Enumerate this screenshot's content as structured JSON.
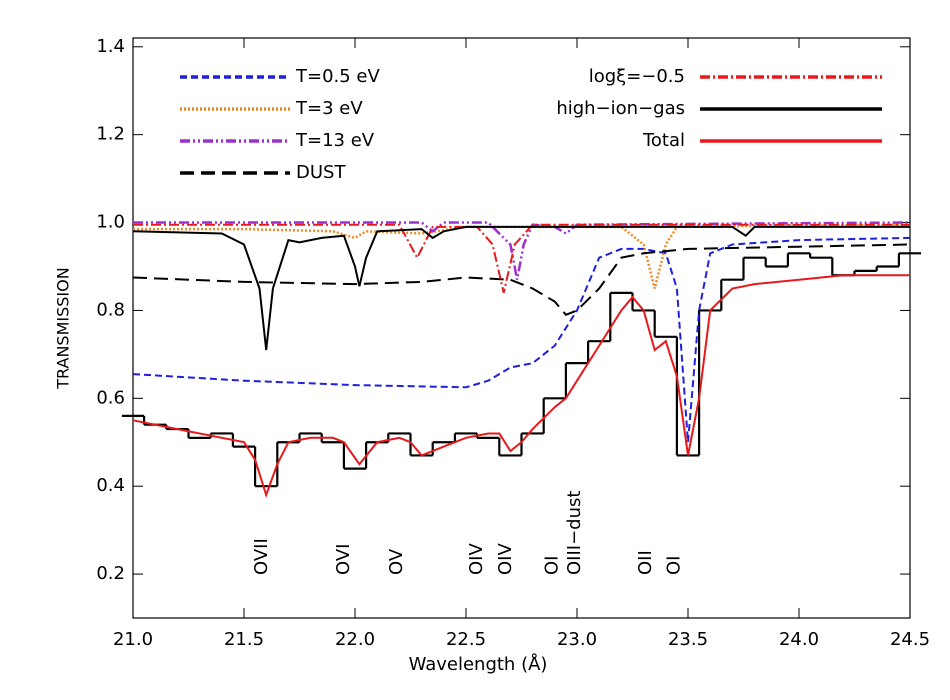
{
  "chart_data": {
    "type": "line",
    "xlabel": "Wavelength (Å)",
    "ylabel": "TRANSMISSION",
    "xlim": [
      21.0,
      24.5
    ],
    "ylim": [
      0.1,
      1.42
    ],
    "xticks": [
      {
        "value": 21,
        "label": "21.0"
      },
      {
        "value": 21.5,
        "label": "21.5"
      },
      {
        "value": 22,
        "label": "22.0"
      },
      {
        "value": 22.5,
        "label": "22.5"
      },
      {
        "value": 23,
        "label": "23.0"
      },
      {
        "value": 23.5,
        "label": "23.5"
      },
      {
        "value": 24,
        "label": "24.0"
      },
      {
        "value": 24.5,
        "label": "24.5"
      }
    ],
    "yticks": [
      0.2,
      0.4,
      0.6,
      0.8,
      {
        "value": 1,
        "label": "1.0"
      },
      1.2,
      1.4
    ],
    "grid": false,
    "observed": {
      "color": "#000000",
      "x": [
        21.0,
        21.1,
        21.2,
        21.3,
        21.4,
        21.5,
        21.6,
        21.7,
        21.8,
        21.9,
        22.0,
        22.1,
        22.2,
        22.3,
        22.4,
        22.5,
        22.6,
        22.7,
        22.8,
        22.9,
        23.0,
        23.1,
        23.2,
        23.3,
        23.4,
        23.5,
        23.6,
        23.7,
        23.8,
        23.9,
        24.0,
        24.1,
        24.2,
        24.3,
        24.4,
        24.5
      ],
      "values": [
        0.56,
        0.54,
        0.53,
        0.51,
        0.52,
        0.49,
        0.4,
        0.5,
        0.52,
        0.5,
        0.44,
        0.5,
        0.52,
        0.47,
        0.5,
        0.52,
        0.51,
        0.47,
        0.52,
        0.6,
        0.68,
        0.73,
        0.84,
        0.8,
        0.74,
        0.47,
        0.8,
        0.87,
        0.92,
        0.9,
        0.93,
        0.92,
        0.88,
        0.89,
        0.9,
        0.93
      ]
    },
    "series": [
      {
        "name": "T=0.5 eV",
        "color": "#1f1fe0",
        "dash": "dashed",
        "x": [
          21.0,
          21.5,
          22.0,
          22.5,
          22.6,
          22.7,
          22.8,
          22.9,
          23.0,
          23.1,
          23.2,
          23.3,
          23.4,
          23.45,
          23.5,
          23.55,
          23.6,
          23.7,
          24.0,
          24.5
        ],
        "values": [
          0.655,
          0.64,
          0.63,
          0.625,
          0.64,
          0.67,
          0.68,
          0.72,
          0.8,
          0.92,
          0.94,
          0.94,
          0.93,
          0.85,
          0.5,
          0.8,
          0.93,
          0.95,
          0.96,
          0.965
        ]
      },
      {
        "name": "T=3 eV",
        "color": "#f08a24",
        "dash": "dotted",
        "x": [
          21.0,
          21.5,
          21.9,
          22.0,
          22.05,
          22.3,
          22.5,
          23.0,
          23.2,
          23.3,
          23.35,
          23.4,
          23.45,
          24.5
        ],
        "values": [
          0.985,
          0.985,
          0.98,
          0.965,
          0.98,
          0.975,
          0.99,
          0.99,
          0.99,
          0.95,
          0.85,
          0.95,
          0.99,
          0.995
        ]
      },
      {
        "name": "T=13 eV",
        "color": "#9b30d0",
        "dash": "dash-dot-dot",
        "x": [
          21.0,
          22.3,
          22.35,
          22.4,
          22.6,
          22.7,
          22.73,
          22.76,
          22.8,
          22.9,
          22.95,
          23.0,
          24.5
        ],
        "values": [
          1.0,
          1.0,
          0.98,
          1.0,
          1.0,
          0.95,
          0.87,
          0.95,
          0.995,
          0.99,
          0.975,
          0.995,
          1.0
        ]
      },
      {
        "name": "DUST",
        "color": "#000000",
        "dash": "long-dash",
        "x": [
          21.0,
          21.5,
          22.0,
          22.3,
          22.5,
          22.7,
          22.8,
          22.9,
          22.95,
          23.0,
          23.1,
          23.2,
          23.3,
          23.5,
          24.0,
          24.5
        ],
        "values": [
          0.875,
          0.865,
          0.86,
          0.865,
          0.875,
          0.87,
          0.85,
          0.82,
          0.79,
          0.8,
          0.85,
          0.92,
          0.93,
          0.94,
          0.945,
          0.95
        ]
      },
      {
        "name": "logξ=−0.5",
        "color": "#e8181b",
        "dash": "dash-dot",
        "x": [
          21.0,
          22.2,
          22.28,
          22.35,
          22.55,
          22.62,
          22.67,
          22.72,
          22.8,
          24.5
        ],
        "values": [
          0.995,
          0.995,
          0.92,
          0.99,
          0.99,
          0.95,
          0.84,
          0.95,
          0.995,
          0.995
        ]
      },
      {
        "name": "high−ion−gas",
        "color": "#000000",
        "dash": "solid",
        "x": [
          21.0,
          21.4,
          21.5,
          21.57,
          21.6,
          21.63,
          21.7,
          21.75,
          21.85,
          21.95,
          22.0,
          22.02,
          22.05,
          22.1,
          22.3,
          22.35,
          22.4,
          22.5,
          23.7,
          23.76,
          23.8,
          24.5
        ],
        "values": [
          0.98,
          0.975,
          0.95,
          0.85,
          0.71,
          0.85,
          0.96,
          0.955,
          0.965,
          0.97,
          0.9,
          0.855,
          0.92,
          0.98,
          0.985,
          0.965,
          0.98,
          0.99,
          0.99,
          0.97,
          0.99,
          0.99
        ]
      },
      {
        "name": "Total",
        "color": "#e8181b",
        "dash": "solid",
        "x": [
          21.0,
          21.2,
          21.4,
          21.5,
          21.55,
          21.6,
          21.65,
          21.7,
          21.8,
          21.9,
          21.95,
          22.02,
          22.1,
          22.2,
          22.25,
          22.3,
          22.4,
          22.5,
          22.6,
          22.65,
          22.7,
          22.75,
          22.8,
          22.9,
          22.95,
          23.0,
          23.1,
          23.2,
          23.25,
          23.3,
          23.35,
          23.4,
          23.45,
          23.5,
          23.55,
          23.6,
          23.7,
          23.8,
          24.0,
          24.2,
          24.5
        ],
        "values": [
          0.55,
          0.53,
          0.51,
          0.5,
          0.46,
          0.38,
          0.45,
          0.5,
          0.51,
          0.51,
          0.5,
          0.45,
          0.5,
          0.51,
          0.5,
          0.47,
          0.49,
          0.51,
          0.52,
          0.52,
          0.48,
          0.5,
          0.53,
          0.58,
          0.6,
          0.64,
          0.72,
          0.8,
          0.83,
          0.8,
          0.71,
          0.73,
          0.65,
          0.47,
          0.6,
          0.8,
          0.85,
          0.86,
          0.87,
          0.88,
          0.88
        ]
      }
    ],
    "annotations": [
      {
        "text": "OVII",
        "x": 21.58
      },
      {
        "text": "OVI",
        "x": 21.95
      },
      {
        "text": "OV",
        "x": 22.19
      },
      {
        "text": "OIV",
        "x": 22.55
      },
      {
        "text": "OIV",
        "x": 22.68
      },
      {
        "text": "OI",
        "x": 22.89
      },
      {
        "text": "OIII−dust",
        "x": 22.99
      },
      {
        "text": "OII",
        "x": 23.31
      },
      {
        "text": "OI",
        "x": 23.44
      }
    ]
  }
}
